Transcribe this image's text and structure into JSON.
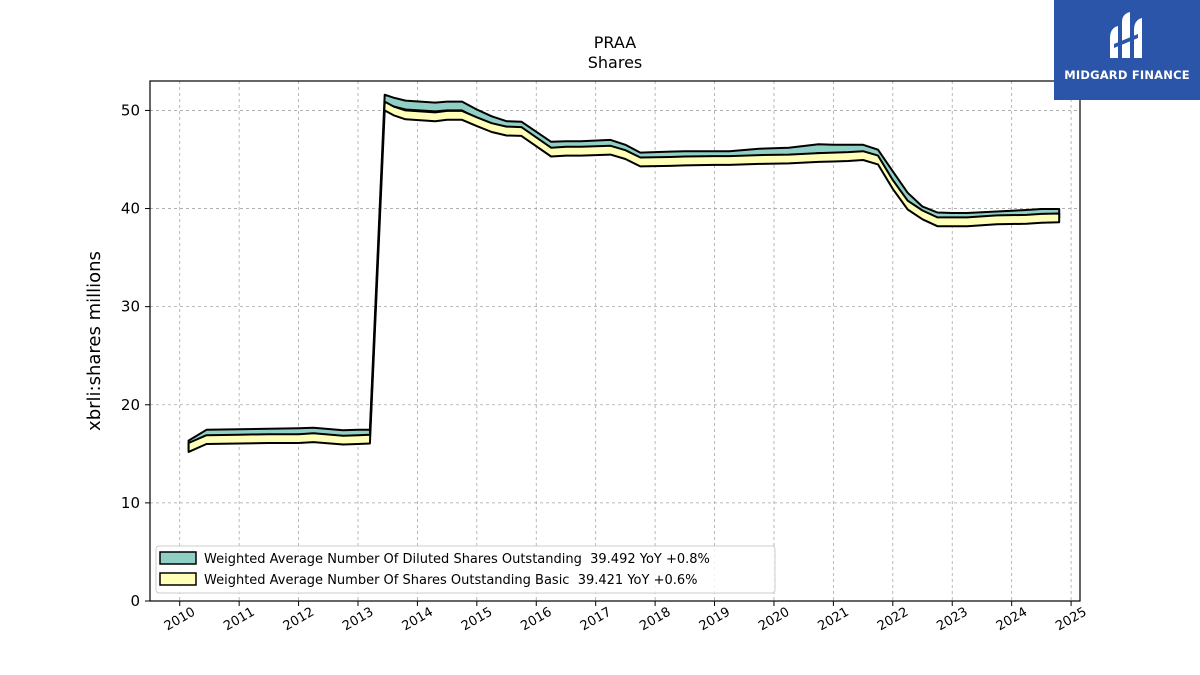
{
  "brand": {
    "name": "MIDGARD FINANCE"
  },
  "colors": {
    "diluted_fill": "#8fcfc4",
    "basic_fill": "#ffffb8",
    "outline": "#000000",
    "grid": "#a6a6a6",
    "logo_bg": "#2b55a8"
  },
  "chart_data": {
    "type": "area",
    "title": "PRAA",
    "subtitle": "Shares",
    "xlabel": "",
    "ylabel": "xbrli:shares millions",
    "xlim": [
      2009.5,
      2025.15
    ],
    "ylim": [
      0,
      53
    ],
    "x_ticks": [
      "2010",
      "2011",
      "2012",
      "2013",
      "2014",
      "2015",
      "2016",
      "2017",
      "2018",
      "2019",
      "2020",
      "2021",
      "2022",
      "2023",
      "2024",
      "2025"
    ],
    "y_ticks": [
      "0",
      "10",
      "20",
      "30",
      "40",
      "50"
    ],
    "grid": true,
    "legend_position": "lower-left",
    "series": [
      {
        "name": "Weighted Average Number Of Diluted Shares Outstanding  39.492 YoY +0.8%",
        "color": "#8fcfc4",
        "points": [
          [
            2010.15,
            16.35
          ],
          [
            2010.45,
            17.45
          ],
          [
            2011.0,
            17.5
          ],
          [
            2011.5,
            17.55
          ],
          [
            2012.0,
            17.6
          ],
          [
            2012.25,
            17.65
          ],
          [
            2012.75,
            17.4
          ],
          [
            2013.0,
            17.45
          ],
          [
            2013.2,
            17.45
          ],
          [
            2013.45,
            51.6
          ],
          [
            2013.6,
            51.3
          ],
          [
            2013.8,
            51.0
          ],
          [
            2014.3,
            50.8
          ],
          [
            2014.5,
            50.9
          ],
          [
            2014.75,
            50.9
          ],
          [
            2015.0,
            50.1
          ],
          [
            2015.25,
            49.4
          ],
          [
            2015.5,
            48.9
          ],
          [
            2015.75,
            48.85
          ],
          [
            2016.25,
            46.8
          ],
          [
            2016.5,
            46.85
          ],
          [
            2016.75,
            46.85
          ],
          [
            2017.25,
            47.0
          ],
          [
            2017.5,
            46.5
          ],
          [
            2017.75,
            45.7
          ],
          [
            2018.25,
            45.8
          ],
          [
            2018.5,
            45.85
          ],
          [
            2019.0,
            45.85
          ],
          [
            2019.25,
            45.85
          ],
          [
            2019.75,
            46.1
          ],
          [
            2020.25,
            46.2
          ],
          [
            2020.75,
            46.55
          ],
          [
            2021.0,
            46.5
          ],
          [
            2021.25,
            46.5
          ],
          [
            2021.5,
            46.5
          ],
          [
            2021.75,
            46.0
          ],
          [
            2022.0,
            43.8
          ],
          [
            2022.25,
            41.6
          ],
          [
            2022.5,
            40.2
          ],
          [
            2022.75,
            39.6
          ],
          [
            2023.0,
            39.55
          ],
          [
            2023.25,
            39.55
          ],
          [
            2023.75,
            39.7
          ],
          [
            2024.25,
            39.85
          ],
          [
            2024.5,
            39.95
          ],
          [
            2024.8,
            39.95
          ]
        ]
      },
      {
        "name": "Weighted Average Number Of Shares Outstanding Basic  39.421 YoY +0.6%",
        "color": "#ffffb8",
        "points": [
          [
            2010.15,
            16.1
          ],
          [
            2010.45,
            16.9
          ],
          [
            2011.0,
            16.95
          ],
          [
            2011.5,
            17.0
          ],
          [
            2012.0,
            17.0
          ],
          [
            2012.25,
            17.1
          ],
          [
            2012.75,
            16.85
          ],
          [
            2013.0,
            16.9
          ],
          [
            2013.2,
            16.95
          ],
          [
            2013.45,
            50.9
          ],
          [
            2013.6,
            50.4
          ],
          [
            2013.8,
            50.0
          ],
          [
            2014.3,
            49.8
          ],
          [
            2014.5,
            49.95
          ],
          [
            2014.75,
            49.95
          ],
          [
            2015.0,
            49.3
          ],
          [
            2015.25,
            48.7
          ],
          [
            2015.5,
            48.35
          ],
          [
            2015.75,
            48.3
          ],
          [
            2016.25,
            46.2
          ],
          [
            2016.5,
            46.3
          ],
          [
            2016.75,
            46.3
          ],
          [
            2017.25,
            46.4
          ],
          [
            2017.5,
            45.95
          ],
          [
            2017.75,
            45.2
          ],
          [
            2018.25,
            45.25
          ],
          [
            2018.5,
            45.3
          ],
          [
            2019.0,
            45.35
          ],
          [
            2019.25,
            45.35
          ],
          [
            2019.75,
            45.45
          ],
          [
            2020.25,
            45.5
          ],
          [
            2020.75,
            45.65
          ],
          [
            2021.0,
            45.7
          ],
          [
            2021.25,
            45.75
          ],
          [
            2021.5,
            45.85
          ],
          [
            2021.75,
            45.4
          ],
          [
            2022.0,
            42.9
          ],
          [
            2022.25,
            40.8
          ],
          [
            2022.5,
            39.8
          ],
          [
            2022.75,
            39.1
          ],
          [
            2023.0,
            39.1
          ],
          [
            2023.25,
            39.1
          ],
          [
            2023.75,
            39.3
          ],
          [
            2024.25,
            39.35
          ],
          [
            2024.5,
            39.45
          ],
          [
            2024.8,
            39.5
          ]
        ]
      }
    ]
  }
}
